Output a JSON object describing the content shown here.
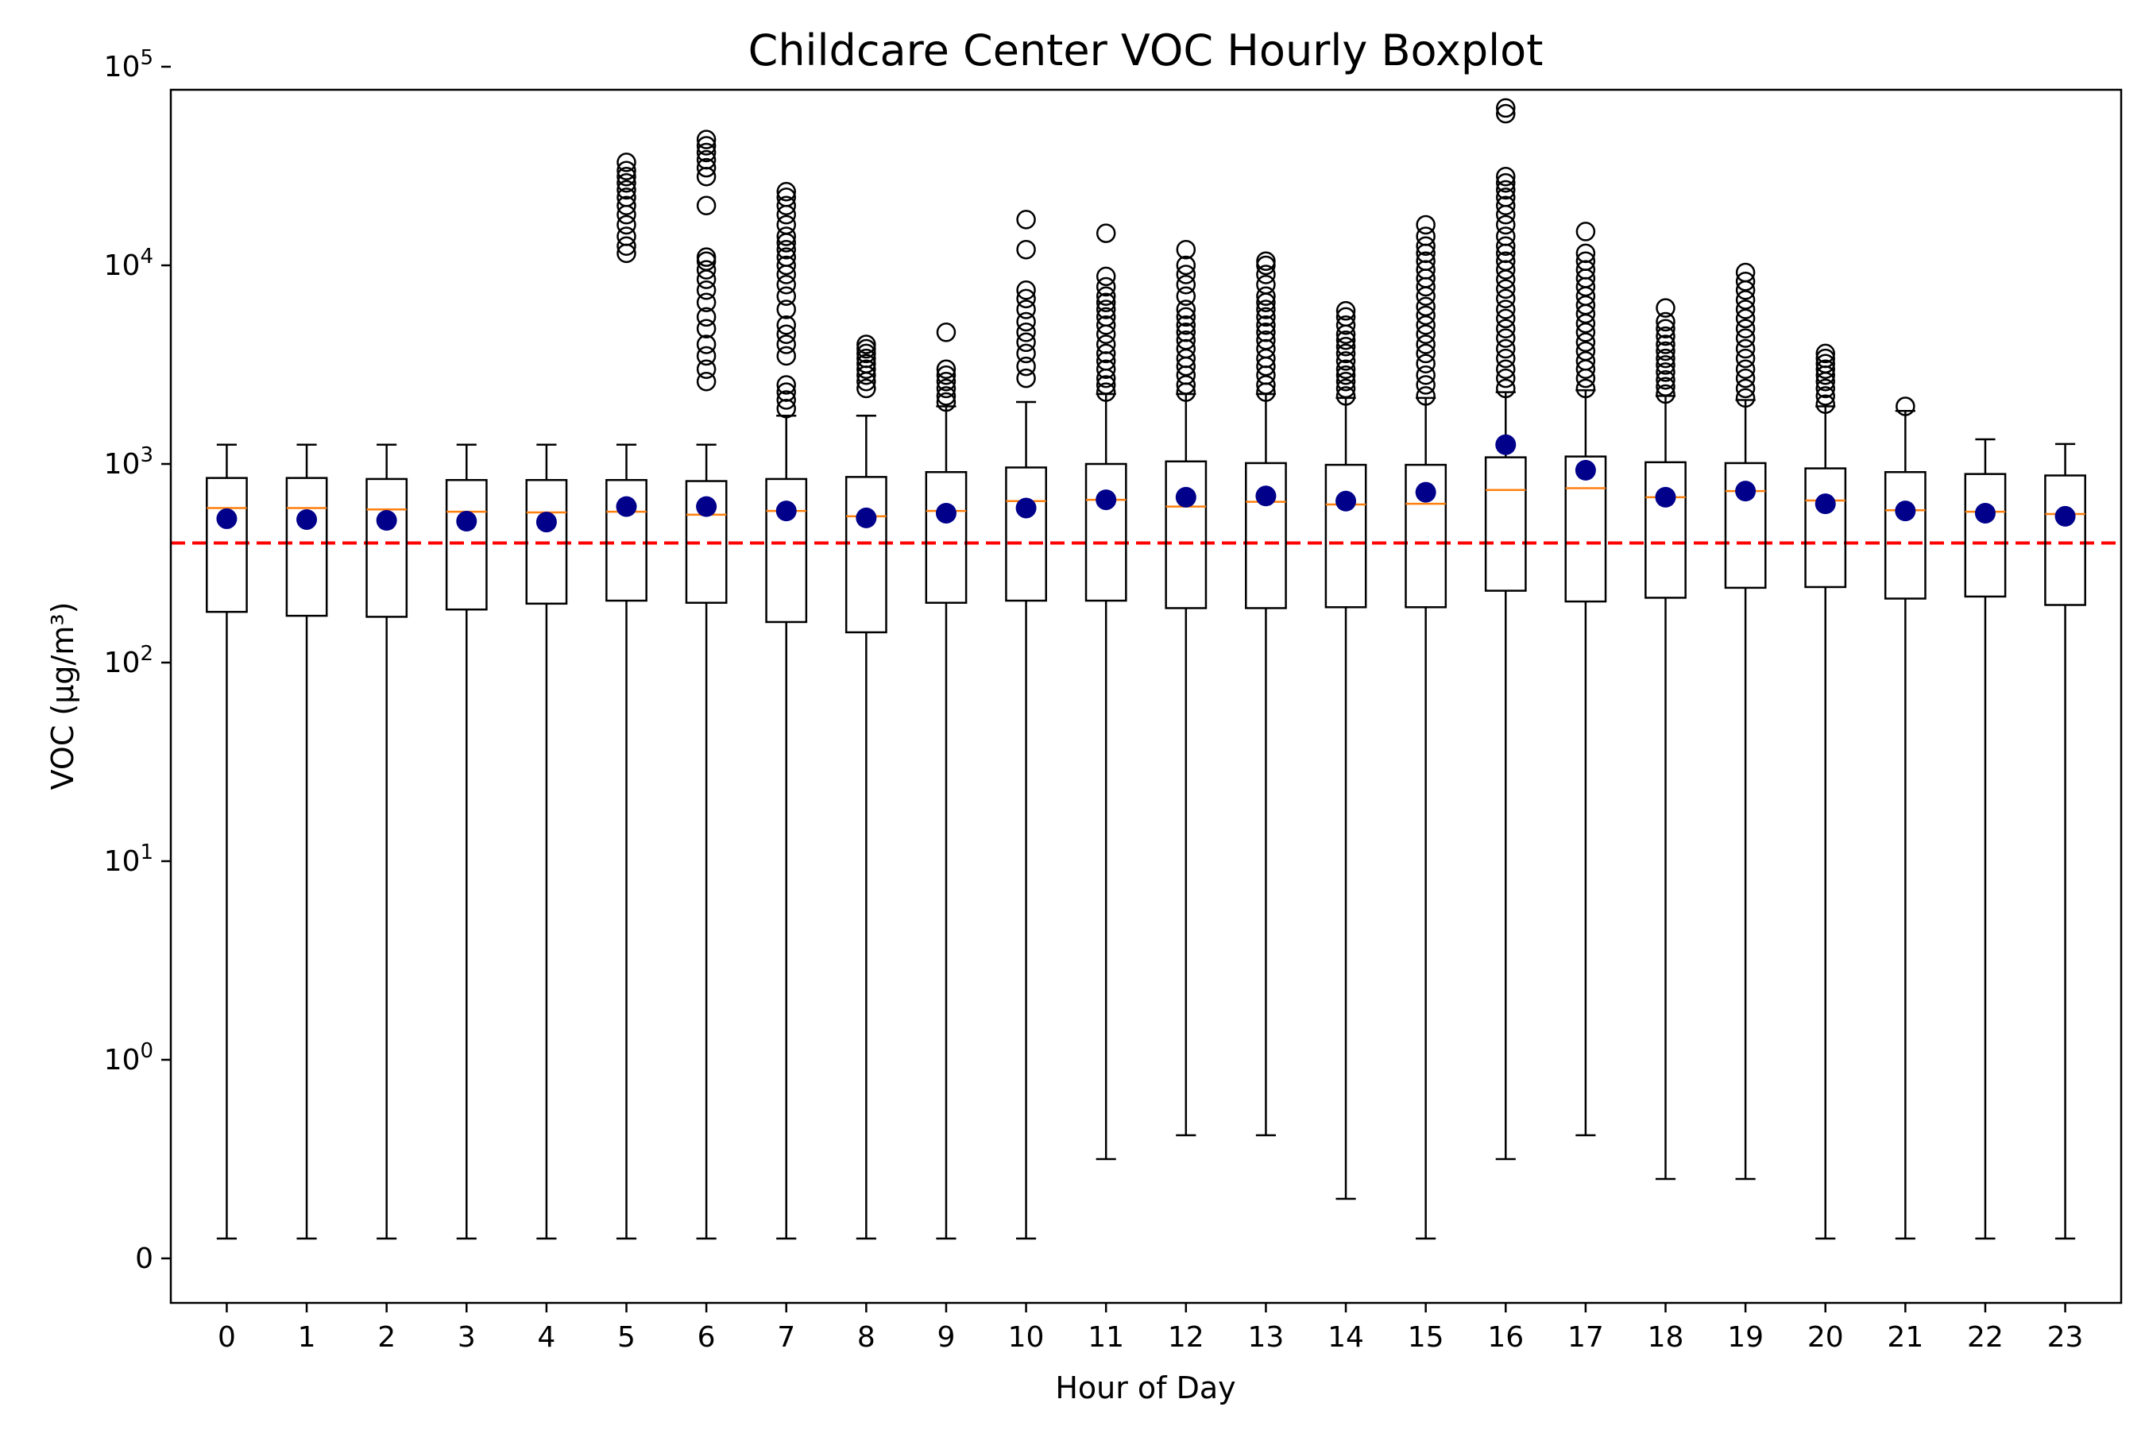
{
  "chart_data": {
    "type": "box",
    "title": "Childcare Center VOC Hourly Boxplot",
    "xlabel": "Hour of Day",
    "ylabel": "VOC (µg/m³)",
    "yscale": "symlog",
    "ylim": [
      -0.3,
      130000
    ],
    "yticks": [
      "0",
      "10^0",
      "10^1",
      "10^2",
      "10^3",
      "10^4",
      "10^5"
    ],
    "threshold": {
      "value": 400,
      "color": "#ff0000",
      "style": "dashed"
    },
    "colors": {
      "median": "#ff7f0e",
      "mean": "#00008b",
      "box": "#000000",
      "flier": "#000000"
    },
    "categories": [
      "0",
      "1",
      "2",
      "3",
      "4",
      "5",
      "6",
      "7",
      "8",
      "9",
      "10",
      "11",
      "12",
      "13",
      "14",
      "15",
      "16",
      "17",
      "18",
      "19",
      "20",
      "21",
      "22",
      "23"
    ],
    "series": [
      {
        "hour": "0",
        "whislo": 0.1,
        "q1": 180,
        "median": 600,
        "q3": 850,
        "whishi": 1250,
        "mean": 530,
        "fliers": []
      },
      {
        "hour": "1",
        "whislo": 0.1,
        "q1": 172,
        "median": 600,
        "q3": 850,
        "whishi": 1250,
        "mean": 525,
        "fliers": []
      },
      {
        "hour": "2",
        "whislo": 0.1,
        "q1": 170,
        "median": 590,
        "q3": 840,
        "whishi": 1250,
        "mean": 520,
        "fliers": []
      },
      {
        "hour": "3",
        "whislo": 0.1,
        "q1": 185,
        "median": 575,
        "q3": 830,
        "whishi": 1250,
        "mean": 515,
        "fliers": []
      },
      {
        "hour": "4",
        "whislo": 0.1,
        "q1": 198,
        "median": 570,
        "q3": 830,
        "whishi": 1250,
        "mean": 510,
        "fliers": []
      },
      {
        "hour": "5",
        "whislo": 0.1,
        "q1": 205,
        "median": 575,
        "q3": 830,
        "whishi": 1250,
        "mean": 610,
        "fliers": [
          11500,
          12500,
          14000,
          16000,
          18000,
          20000,
          22000,
          24000,
          26000,
          28000,
          30000,
          33000
        ]
      },
      {
        "hour": "6",
        "whislo": 0.1,
        "q1": 200,
        "median": 555,
        "q3": 820,
        "whishi": 1250,
        "mean": 610,
        "fliers": [
          2600,
          3000,
          3500,
          4000,
          4800,
          5500,
          6500,
          7500,
          8500,
          9500,
          10500,
          11000,
          20000,
          28000,
          31000,
          34000,
          37000,
          40000,
          43000
        ]
      },
      {
        "hour": "7",
        "whislo": 0.1,
        "q1": 160,
        "median": 580,
        "q3": 840,
        "whishi": 1750,
        "mean": 580,
        "fliers": [
          1900,
          2100,
          2300,
          2500,
          3500,
          4000,
          4500,
          5000,
          6000,
          7000,
          8000,
          9000,
          10000,
          11000,
          12000,
          13000,
          14000,
          16000,
          18000,
          20000,
          22000,
          23500
        ]
      },
      {
        "hour": "8",
        "whislo": 0.1,
        "q1": 142,
        "median": 545,
        "q3": 860,
        "whishi": 1750,
        "mean": 535,
        "fliers": [
          2400,
          2600,
          2800,
          3000,
          3200,
          3400,
          3600,
          3800,
          4000
        ]
      },
      {
        "hour": "9",
        "whislo": 0.1,
        "q1": 200,
        "median": 580,
        "q3": 910,
        "whishi": 1950,
        "mean": 565,
        "fliers": [
          2050,
          2200,
          2400,
          2600,
          2800,
          3000,
          4600
        ]
      },
      {
        "hour": "10",
        "whislo": 0.1,
        "q1": 205,
        "median": 650,
        "q3": 960,
        "whishi": 2050,
        "mean": 600,
        "fliers": [
          2700,
          3100,
          3600,
          4100,
          4600,
          5200,
          6000,
          6800,
          7500,
          12000,
          17000
        ]
      },
      {
        "hour": "11",
        "whislo": 0.5,
        "q1": 205,
        "median": 660,
        "q3": 1000,
        "whishi": 2250,
        "mean": 660,
        "fliers": [
          2300,
          2500,
          2700,
          3000,
          3300,
          3600,
          4000,
          4500,
          5000,
          5500,
          6000,
          6500,
          7000,
          7800,
          8800,
          14500
        ]
      },
      {
        "hour": "12",
        "whislo": 0.62,
        "q1": 188,
        "median": 610,
        "q3": 1030,
        "whishi": 2250,
        "mean": 680,
        "fliers": [
          2300,
          2500,
          2800,
          3100,
          3400,
          3800,
          4200,
          4600,
          5000,
          5500,
          6000,
          7000,
          8000,
          9000,
          10000,
          12000
        ]
      },
      {
        "hour": "13",
        "whislo": 0.62,
        "q1": 188,
        "median": 645,
        "q3": 1010,
        "whishi": 2250,
        "mean": 690,
        "fliers": [
          2300,
          2500,
          2800,
          3100,
          3400,
          3800,
          4200,
          4600,
          5000,
          5500,
          6000,
          6500,
          7000,
          8000,
          9000,
          10000,
          10500
        ]
      },
      {
        "hour": "14",
        "whislo": 0.3,
        "q1": 190,
        "median": 625,
        "q3": 990,
        "whishi": 2150,
        "mean": 650,
        "fliers": [
          2200,
          2400,
          2600,
          2800,
          3000,
          3300,
          3600,
          3900,
          4200,
          4500,
          5000,
          5500,
          5900
        ]
      },
      {
        "hour": "15",
        "whislo": 0.1,
        "q1": 190,
        "median": 630,
        "q3": 990,
        "whishi": 2150,
        "mean": 720,
        "fliers": [
          2200,
          2500,
          2800,
          3200,
          3600,
          4000,
          4500,
          5000,
          5600,
          6200,
          7000,
          7800,
          8600,
          9500,
          10500,
          11500,
          12500,
          14000,
          16000
        ]
      },
      {
        "hour": "16",
        "whislo": 0.5,
        "q1": 230,
        "median": 740,
        "q3": 1080,
        "whishi": 2300,
        "mean": 1250,
        "fliers": [
          2400,
          2700,
          3000,
          3400,
          3800,
          4300,
          4800,
          5400,
          6000,
          6800,
          7600,
          8500,
          9500,
          10500,
          11500,
          12500,
          14000,
          16000,
          18000,
          20000,
          22000,
          24000,
          26000,
          28000,
          58000,
          62000
        ]
      },
      {
        "hour": "17",
        "whislo": 0.62,
        "q1": 203,
        "median": 755,
        "q3": 1090,
        "whishi": 2350,
        "mean": 930,
        "fliers": [
          2400,
          2700,
          3000,
          3300,
          3700,
          4100,
          4600,
          5100,
          5700,
          6300,
          7000,
          7800,
          8600,
          9500,
          10500,
          11500,
          14800
        ]
      },
      {
        "hour": "18",
        "whislo": 0.4,
        "q1": 212,
        "median": 680,
        "q3": 1020,
        "whishi": 2200,
        "mean": 680,
        "fliers": [
          2250,
          2450,
          2650,
          2900,
          3150,
          3400,
          3700,
          4000,
          4400,
          4800,
          5200,
          6100
        ]
      },
      {
        "hour": "19",
        "whislo": 0.4,
        "q1": 238,
        "median": 730,
        "q3": 1010,
        "whishi": 2100,
        "mean": 730,
        "fliers": [
          2150,
          2400,
          2700,
          3000,
          3400,
          3800,
          4300,
          4800,
          5400,
          6000,
          6700,
          7500,
          8300,
          9200
        ]
      },
      {
        "hour": "20",
        "whislo": 0.1,
        "q1": 240,
        "median": 655,
        "q3": 950,
        "whishi": 1950,
        "mean": 630,
        "fliers": [
          2000,
          2200,
          2400,
          2600,
          2800,
          3000,
          3200,
          3400,
          3600
        ]
      },
      {
        "hour": "21",
        "whislo": 0.1,
        "q1": 210,
        "median": 585,
        "q3": 910,
        "whishi": 1850,
        "mean": 580,
        "fliers": [
          1950
        ]
      },
      {
        "hour": "22",
        "whislo": 0.1,
        "q1": 215,
        "median": 575,
        "q3": 890,
        "whishi": 1330,
        "mean": 565,
        "fliers": []
      },
      {
        "hour": "23",
        "whislo": 0.1,
        "q1": 195,
        "median": 560,
        "q3": 875,
        "whishi": 1260,
        "mean": 545,
        "fliers": []
      }
    ]
  }
}
